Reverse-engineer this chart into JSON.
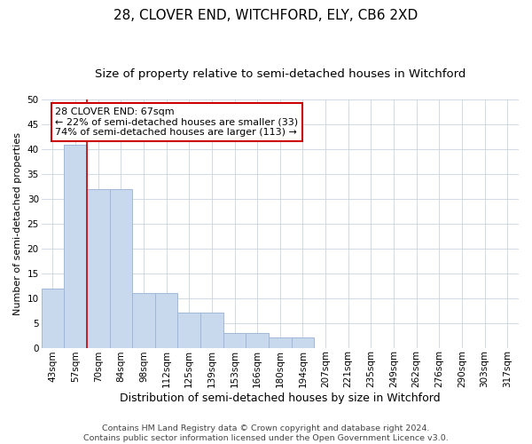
{
  "title1": "28, CLOVER END, WITCHFORD, ELY, CB6 2XD",
  "title2": "Size of property relative to semi-detached houses in Witchford",
  "xlabel": "Distribution of semi-detached houses by size in Witchford",
  "ylabel": "Number of semi-detached properties",
  "categories": [
    "43sqm",
    "57sqm",
    "70sqm",
    "84sqm",
    "98sqm",
    "112sqm",
    "125sqm",
    "139sqm",
    "153sqm",
    "166sqm",
    "180sqm",
    "194sqm",
    "207sqm",
    "221sqm",
    "235sqm",
    "249sqm",
    "262sqm",
    "276sqm",
    "290sqm",
    "303sqm",
    "317sqm"
  ],
  "values": [
    12,
    41,
    32,
    32,
    11,
    11,
    7,
    7,
    3,
    3,
    2,
    2,
    0,
    0,
    0,
    0,
    0,
    0,
    0,
    0,
    0
  ],
  "bar_color": "#c9d9ed",
  "bar_edge_color": "#a0b8d8",
  "vline_x": 1.5,
  "vline_color": "#cc0000",
  "annotation_text": "28 CLOVER END: 67sqm\n← 22% of semi-detached houses are smaller (33)\n74% of semi-detached houses are larger (113) →",
  "annotation_box_color": "#ffffff",
  "annotation_box_edge": "#cc0000",
  "ylim": [
    0,
    50
  ],
  "yticks": [
    0,
    5,
    10,
    15,
    20,
    25,
    30,
    35,
    40,
    45,
    50
  ],
  "footnote": "Contains HM Land Registry data © Crown copyright and database right 2024.\nContains public sector information licensed under the Open Government Licence v3.0.",
  "bg_color": "#ffffff",
  "grid_color": "#c8d4e0",
  "title1_fontsize": 11,
  "title2_fontsize": 9.5,
  "xlabel_fontsize": 9,
  "ylabel_fontsize": 8,
  "tick_fontsize": 7.5,
  "footnote_fontsize": 6.8,
  "annotation_fontsize": 8
}
